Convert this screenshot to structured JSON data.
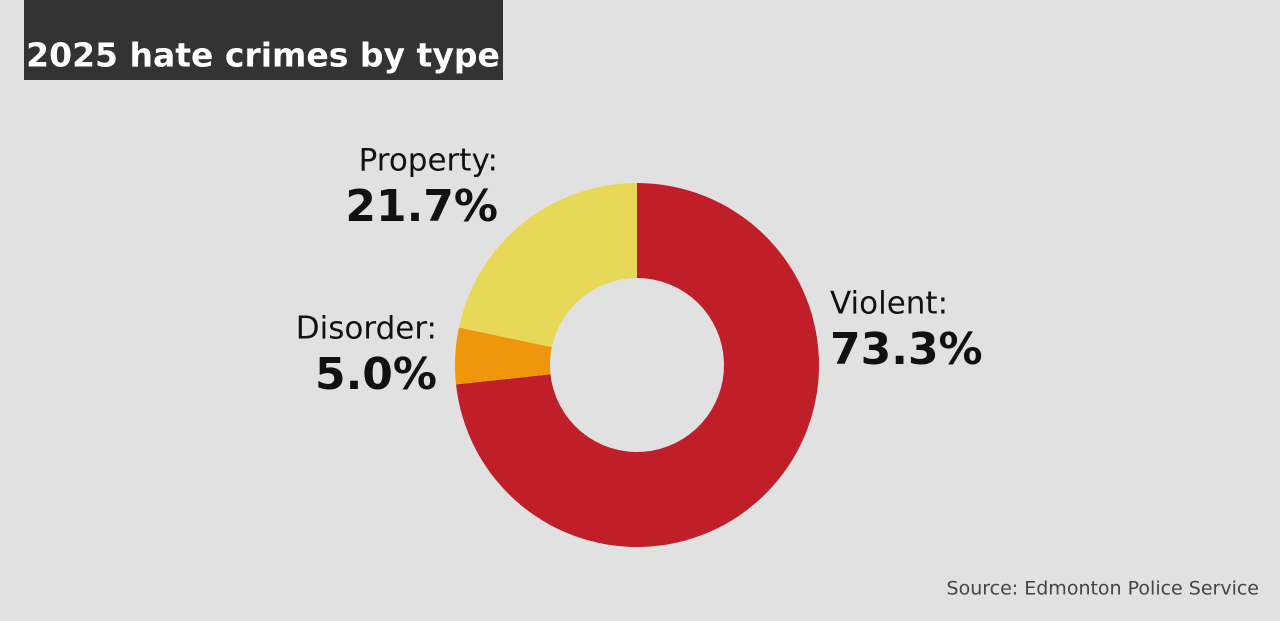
{
  "chart_data": {
    "type": "donut",
    "title": "2025 hate crimes by type",
    "categories": [
      "Violent:",
      "Disorder:",
      "Property:"
    ],
    "values": [
      73.3,
      5.0,
      21.7
    ],
    "value_labels": [
      "73.3%",
      "5.0%",
      "21.7%"
    ],
    "colors": [
      "#c01f29",
      "#f0960c",
      "#e8d857"
    ],
    "source": "Source: Edmonton Police Service"
  }
}
